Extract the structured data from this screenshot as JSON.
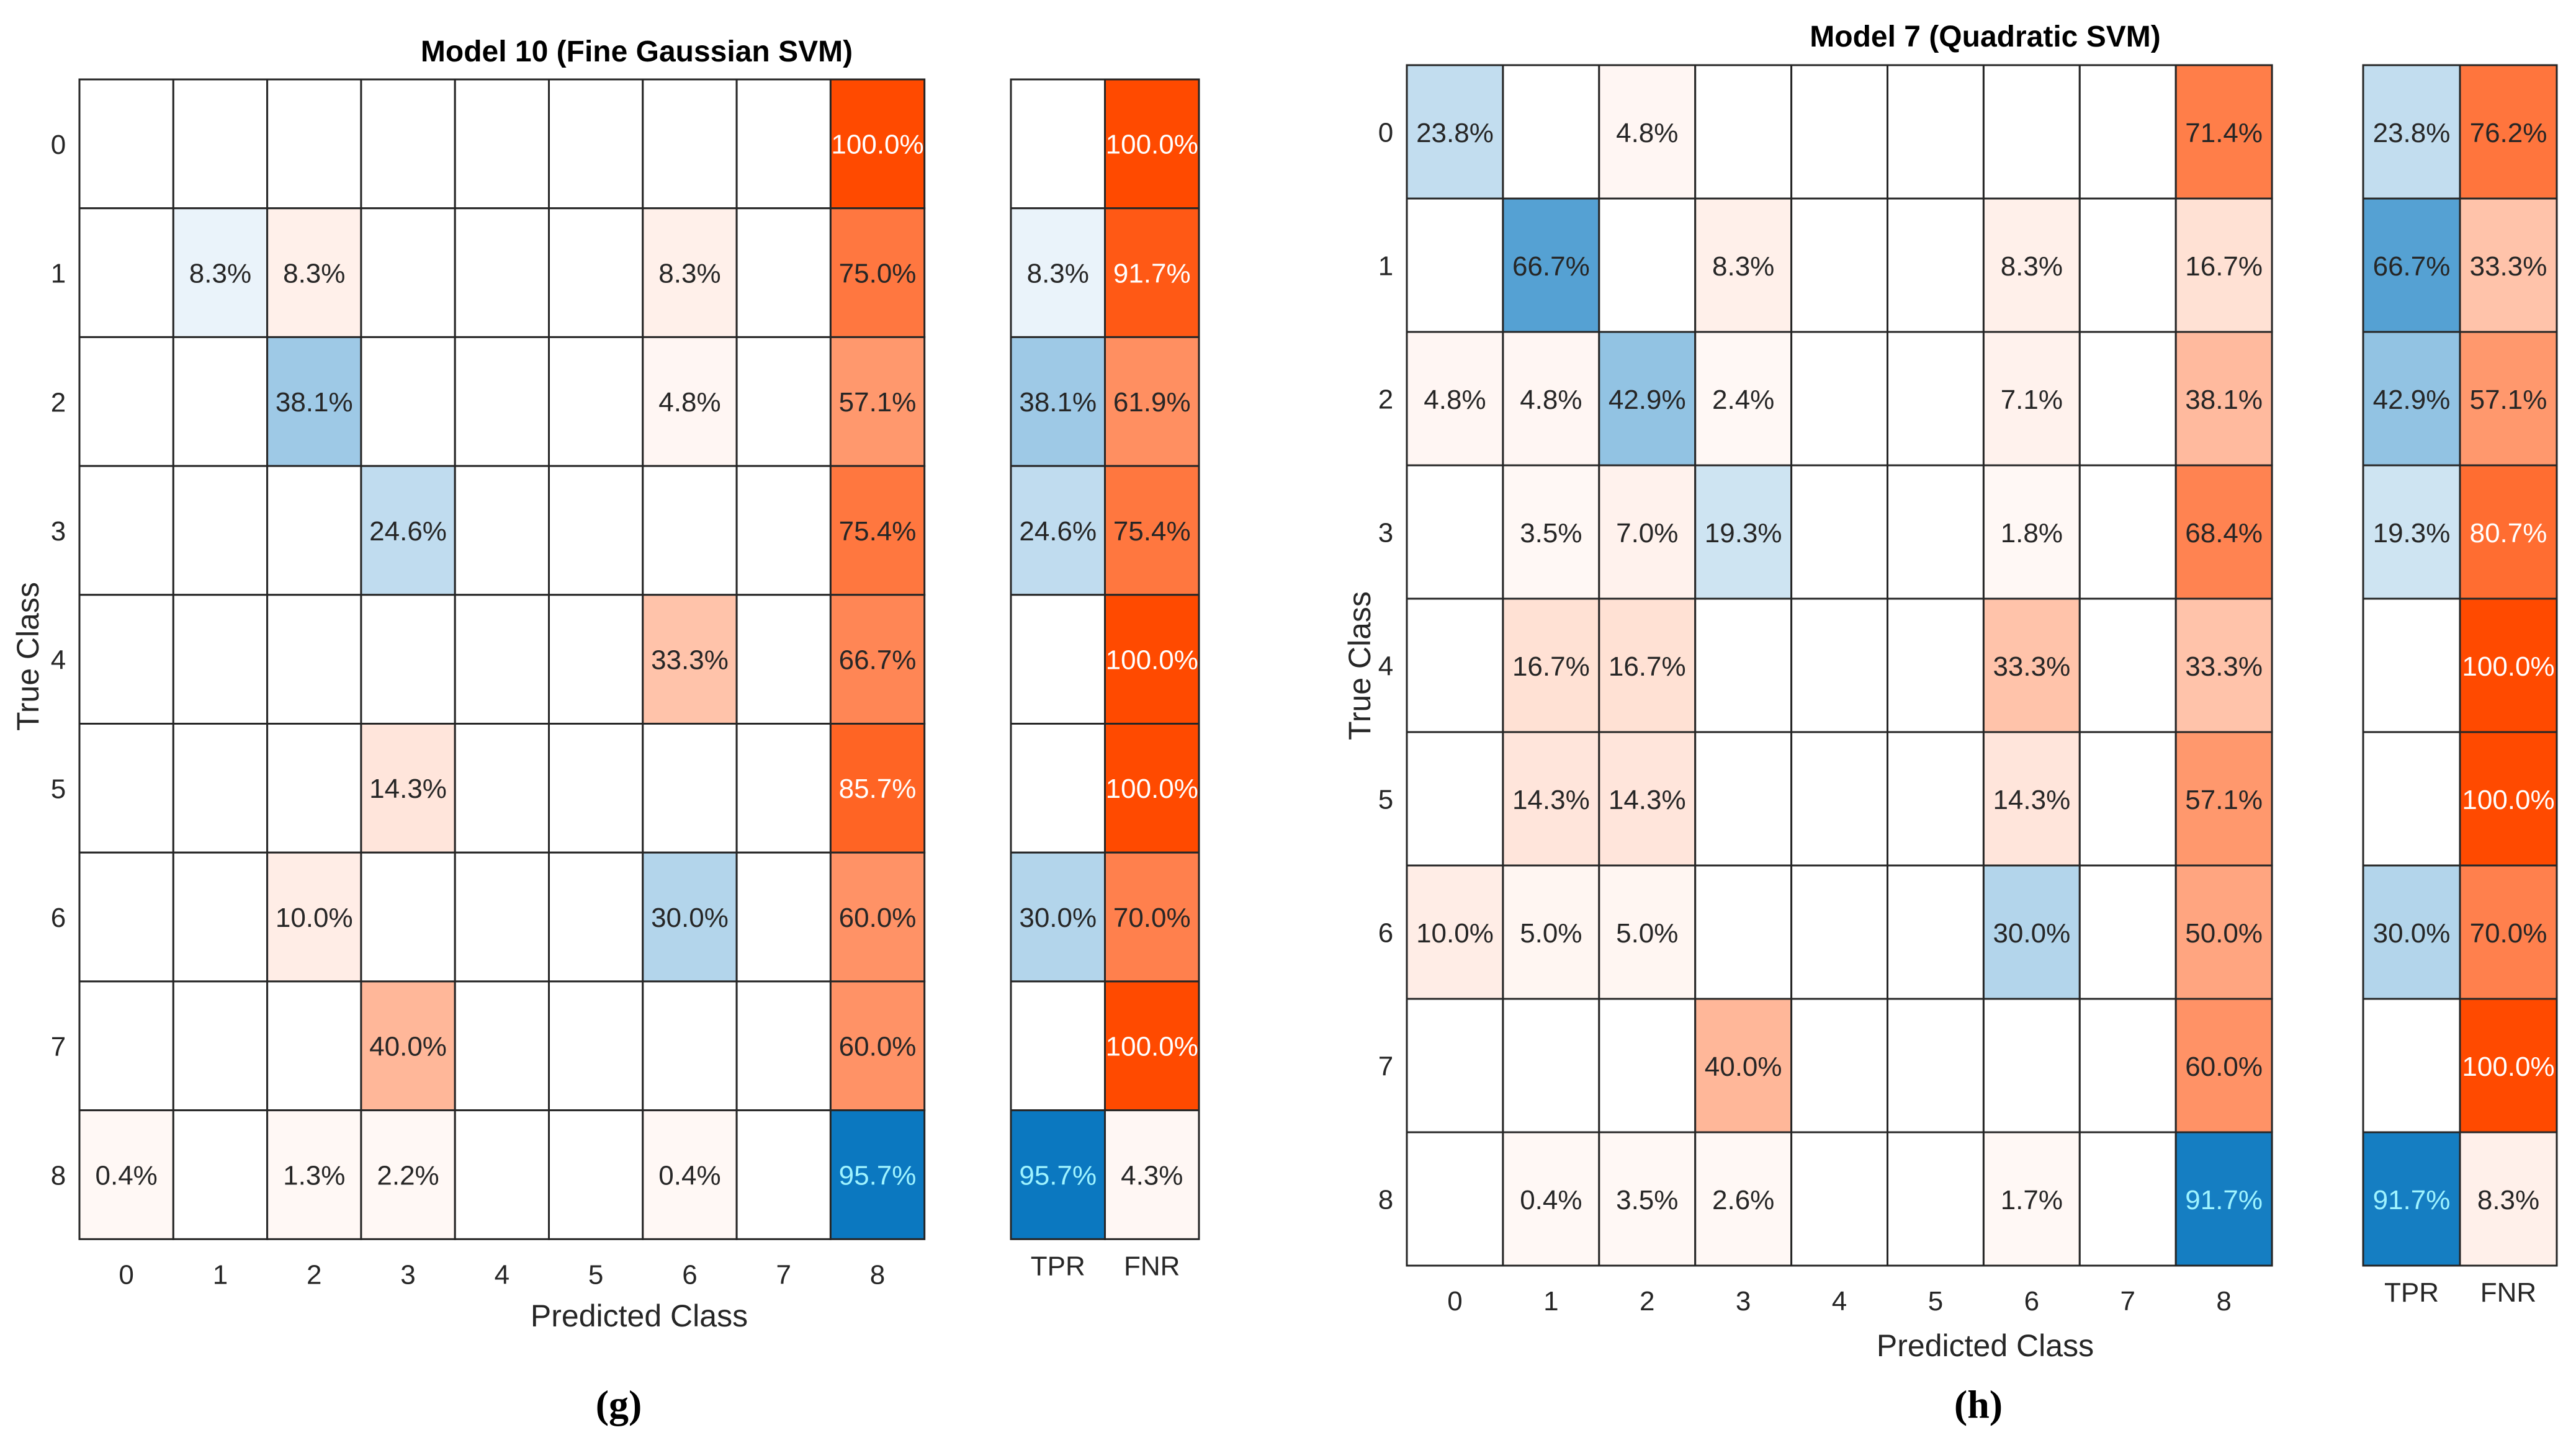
{
  "chart_data": [
    {
      "type": "heatmap",
      "title": "Model 10 (Fine Gaussian SVM)",
      "xlabel": "Predicted Class",
      "ylabel": "True Class",
      "caption": "(g)",
      "classes": [
        "0",
        "1",
        "2",
        "3",
        "4",
        "5",
        "6",
        "7",
        "8"
      ],
      "summary_columns": [
        "TPR",
        "FNR"
      ],
      "matrix": [
        [
          null,
          null,
          null,
          null,
          null,
          null,
          null,
          null,
          100.0
        ],
        [
          null,
          8.3,
          8.3,
          null,
          null,
          null,
          8.3,
          null,
          75.0
        ],
        [
          null,
          null,
          38.1,
          null,
          null,
          null,
          4.8,
          null,
          57.1
        ],
        [
          null,
          null,
          null,
          24.6,
          null,
          null,
          null,
          null,
          75.4
        ],
        [
          null,
          null,
          null,
          null,
          null,
          null,
          33.3,
          null,
          66.7
        ],
        [
          null,
          null,
          null,
          14.3,
          null,
          null,
          null,
          null,
          85.7
        ],
        [
          null,
          null,
          10.0,
          null,
          null,
          null,
          30.0,
          null,
          60.0
        ],
        [
          null,
          null,
          null,
          40.0,
          null,
          null,
          null,
          null,
          60.0
        ],
        [
          0.4,
          null,
          1.3,
          2.2,
          null,
          null,
          0.4,
          null,
          95.7
        ]
      ],
      "summary": [
        [
          null,
          100.0
        ],
        [
          8.3,
          91.7
        ],
        [
          38.1,
          61.9
        ],
        [
          24.6,
          75.4
        ],
        [
          null,
          100.0
        ],
        [
          null,
          100.0
        ],
        [
          30.0,
          70.0
        ],
        [
          null,
          100.0
        ],
        [
          95.7,
          4.3
        ]
      ]
    },
    {
      "type": "heatmap",
      "title": "Model 7 (Quadratic SVM)",
      "xlabel": "Predicted Class",
      "ylabel": "True Class",
      "caption": "(h)",
      "classes": [
        "0",
        "1",
        "2",
        "3",
        "4",
        "5",
        "6",
        "7",
        "8"
      ],
      "summary_columns": [
        "TPR",
        "FNR"
      ],
      "matrix": [
        [
          23.8,
          null,
          4.8,
          null,
          null,
          null,
          null,
          null,
          71.4
        ],
        [
          null,
          66.7,
          null,
          8.3,
          null,
          null,
          8.3,
          null,
          16.7
        ],
        [
          4.8,
          4.8,
          42.9,
          2.4,
          null,
          null,
          7.1,
          null,
          38.1
        ],
        [
          null,
          3.5,
          7.0,
          19.3,
          null,
          null,
          1.8,
          null,
          68.4
        ],
        [
          null,
          16.7,
          16.7,
          null,
          null,
          null,
          33.3,
          null,
          33.3
        ],
        [
          null,
          14.3,
          14.3,
          null,
          null,
          null,
          14.3,
          null,
          57.1
        ],
        [
          10.0,
          5.0,
          5.0,
          null,
          null,
          null,
          30.0,
          null,
          50.0
        ],
        [
          null,
          null,
          null,
          40.0,
          null,
          null,
          null,
          null,
          60.0
        ],
        [
          null,
          0.4,
          3.5,
          2.6,
          null,
          null,
          1.7,
          null,
          91.7
        ]
      ],
      "summary": [
        [
          23.8,
          76.2
        ],
        [
          66.7,
          33.3
        ],
        [
          42.9,
          57.1
        ],
        [
          19.3,
          80.7
        ],
        [
          null,
          100.0
        ],
        [
          null,
          100.0
        ],
        [
          30.0,
          70.0
        ],
        [
          null,
          100.0
        ],
        [
          91.7,
          8.3
        ]
      ]
    }
  ],
  "colors": {
    "diagonal_max": "#0072bd",
    "offdiag_max": "#ff4a00",
    "grid": "#262626",
    "blank": "#ffffff"
  }
}
